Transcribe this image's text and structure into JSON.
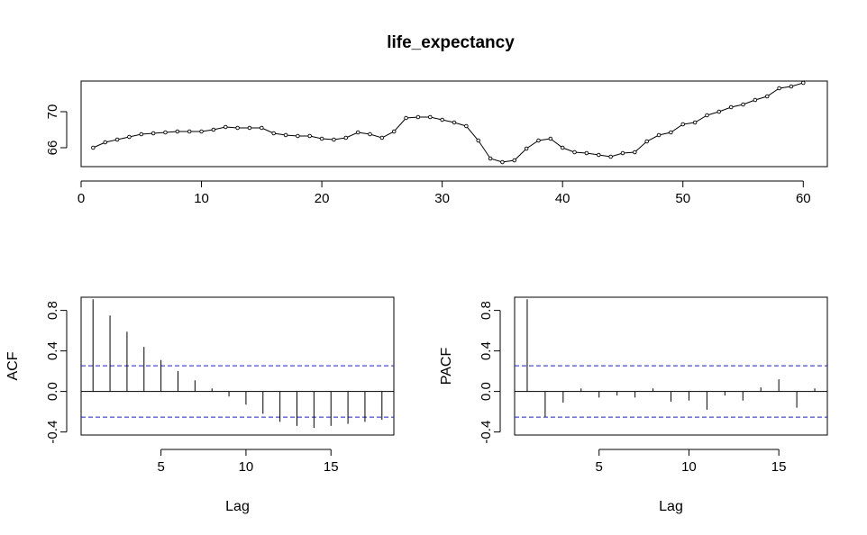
{
  "chart_data": [
    {
      "type": "line",
      "title": "life_expectancy",
      "xlabel": "",
      "ylabel": "",
      "xlim": [
        0,
        62
      ],
      "ylim": [
        63.9,
        73.4
      ],
      "xticks": [
        "0",
        "10",
        "20",
        "30",
        "40",
        "50",
        "60"
      ],
      "yticks": [
        "66",
        "70"
      ],
      "x": [
        1,
        2,
        3,
        4,
        5,
        6,
        7,
        8,
        9,
        10,
        11,
        12,
        13,
        14,
        15,
        16,
        17,
        18,
        19,
        20,
        21,
        22,
        23,
        24,
        25,
        26,
        27,
        28,
        29,
        30,
        31,
        32,
        33,
        34,
        35,
        36,
        37,
        38,
        39,
        40,
        41,
        42,
        43,
        44,
        45,
        46,
        47,
        48,
        49,
        50,
        51,
        52,
        53,
        54,
        55,
        56,
        57,
        58,
        59,
        60
      ],
      "series": [
        {
          "values": [
            66.0,
            66.6,
            66.9,
            67.2,
            67.5,
            67.6,
            67.7,
            67.8,
            67.8,
            67.8,
            68.0,
            68.3,
            68.2,
            68.2,
            68.2,
            67.6,
            67.4,
            67.3,
            67.3,
            67.0,
            66.9,
            67.1,
            67.7,
            67.5,
            67.1,
            67.8,
            69.3,
            69.4,
            69.4,
            69.1,
            68.8,
            68.4,
            66.8,
            64.8,
            64.4,
            64.6,
            65.9,
            66.8,
            67.0,
            66.0,
            65.5,
            65.4,
            65.2,
            65.0,
            65.4,
            65.5,
            66.7,
            67.4,
            67.7,
            68.6,
            68.8,
            69.6,
            70.0,
            70.5,
            70.8,
            71.3,
            71.7,
            72.6,
            72.8,
            73.2
          ]
        }
      ]
    },
    {
      "type": "bar",
      "title": "",
      "xlabel": "Lag",
      "ylabel": "ACF",
      "xlim": [
        0.3,
        18.7
      ],
      "ylim": [
        -0.43,
        0.93
      ],
      "xticks": [
        "5",
        "10",
        "15"
      ],
      "yticks": [
        "-0.4",
        "0.0",
        "0.4",
        "0.8"
      ],
      "ci": 0.253,
      "x": [
        1,
        2,
        3,
        4,
        5,
        6,
        7,
        8,
        9,
        10,
        11,
        12,
        13,
        14,
        15,
        16,
        17,
        18
      ],
      "values": [
        0.91,
        0.75,
        0.59,
        0.44,
        0.31,
        0.2,
        0.11,
        0.03,
        -0.05,
        -0.13,
        -0.22,
        -0.3,
        -0.34,
        -0.36,
        -0.34,
        -0.32,
        -0.3,
        -0.28
      ]
    },
    {
      "type": "bar",
      "title": "",
      "xlabel": "Lag",
      "ylabel": "PACF",
      "xlim": [
        0.3,
        17.7
      ],
      "ylim": [
        -0.43,
        0.93
      ],
      "xticks": [
        "5",
        "10",
        "15"
      ],
      "yticks": [
        "-0.4",
        "0.0",
        "0.4",
        "0.8"
      ],
      "ci": 0.253,
      "x": [
        1,
        2,
        3,
        4,
        5,
        6,
        7,
        8,
        9,
        10,
        11,
        12,
        13,
        14,
        15,
        16,
        17
      ],
      "values": [
        0.91,
        -0.25,
        -0.11,
        0.03,
        -0.06,
        -0.04,
        -0.06,
        0.03,
        -0.1,
        -0.09,
        -0.18,
        -0.04,
        -0.09,
        0.04,
        0.12,
        -0.16,
        0.03
      ]
    }
  ]
}
